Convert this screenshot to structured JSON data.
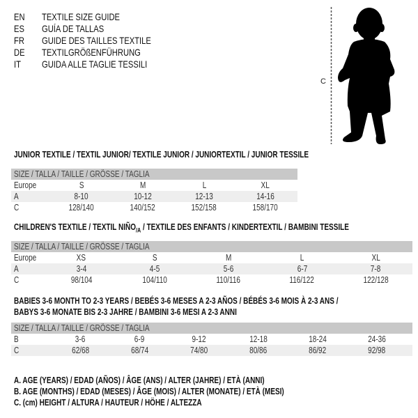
{
  "languages": [
    {
      "code": "EN",
      "text": "TEXTILE SIZE GUIDE"
    },
    {
      "code": "ES",
      "text": "GUÍA DE TALLAS"
    },
    {
      "code": "FR",
      "text": "GUIDE DES TAILLES TEXTILE"
    },
    {
      "code": "DE",
      "text": "TEXTILGRÖßENFÜHRUNG"
    },
    {
      "code": "IT",
      "text": "GUIDA ALLE TAGLIE TESSILI"
    }
  ],
  "figure": {
    "measure_label": "C",
    "icon": "baby-silhouette"
  },
  "size_header": "SIZE / TALLA / TAILLE / GRÖSSE / TAGLIA",
  "junior": {
    "title": "JUNIOR TEXTILE / TEXTIL JUNIOR/ TEXTILE JUNIOR / JUNIORTEXTIL / JUNIOR TESSILE",
    "rows": [
      {
        "label": "Europe",
        "cells": [
          "S",
          "M",
          "L",
          "XL"
        ]
      },
      {
        "label": "A",
        "cells": [
          "8-10",
          "10-12",
          "12-13",
          "14-16"
        ]
      },
      {
        "label": "C",
        "cells": [
          "128/140",
          "140/152",
          "152/158",
          "158/170"
        ]
      }
    ]
  },
  "children": {
    "title_a": "CHILDREN'S TEXTILE / TEXTIL NIÑO",
    "title_sub": "/A",
    "title_b": " / TEXTILE DES ENFANTS / KINDERTEXTIL / BAMBINI TESSILE",
    "rows": [
      {
        "label": "Europe",
        "cells": [
          "XS",
          "S",
          "M",
          "L",
          "XL"
        ]
      },
      {
        "label": "A",
        "cells": [
          "3-4",
          "4-5",
          "5-6",
          "6-7",
          "7-8"
        ]
      },
      {
        "label": "C",
        "cells": [
          "98/104",
          "104/110",
          "110/116",
          "116/122",
          "122/128"
        ]
      }
    ]
  },
  "babies": {
    "title_line1": "BABIES 3-6 MONTH TO 2-3 YEARS / BEBÉS 3-6 MESES A 2-3 AÑOS / BÉBÉS 3-6 MOIS À 2-3 ANS /",
    "title_line2": "BABYS 3-6 MONATE BIS 2-3 JAHRE / BAMBINI 3-6 MESI A 2-3 ANNI",
    "rows": [
      {
        "label": "B",
        "cells": [
          "3-6",
          "6-9",
          "9-12",
          "12-18",
          "18-24",
          "24-36"
        ]
      },
      {
        "label": "C",
        "cells": [
          "62/68",
          "68/74",
          "74/80",
          "80/86",
          "86/92",
          "92/98"
        ]
      }
    ]
  },
  "legend": [
    "A. AGE (YEARS) / EDAD (AÑOS) / ÂGE (ANS) / ALTER (JAHRE) / ETÀ (ANNI)",
    "B. AGE (MONTHS) / EDAD (MESES) / ÂGE (MOIS) / ALTER (MONATE) / ETÀ (MESI)",
    "C. (cm) HEIGHT / ALTURA / HAUTEUR / HÖHE / ALTEZZA"
  ]
}
